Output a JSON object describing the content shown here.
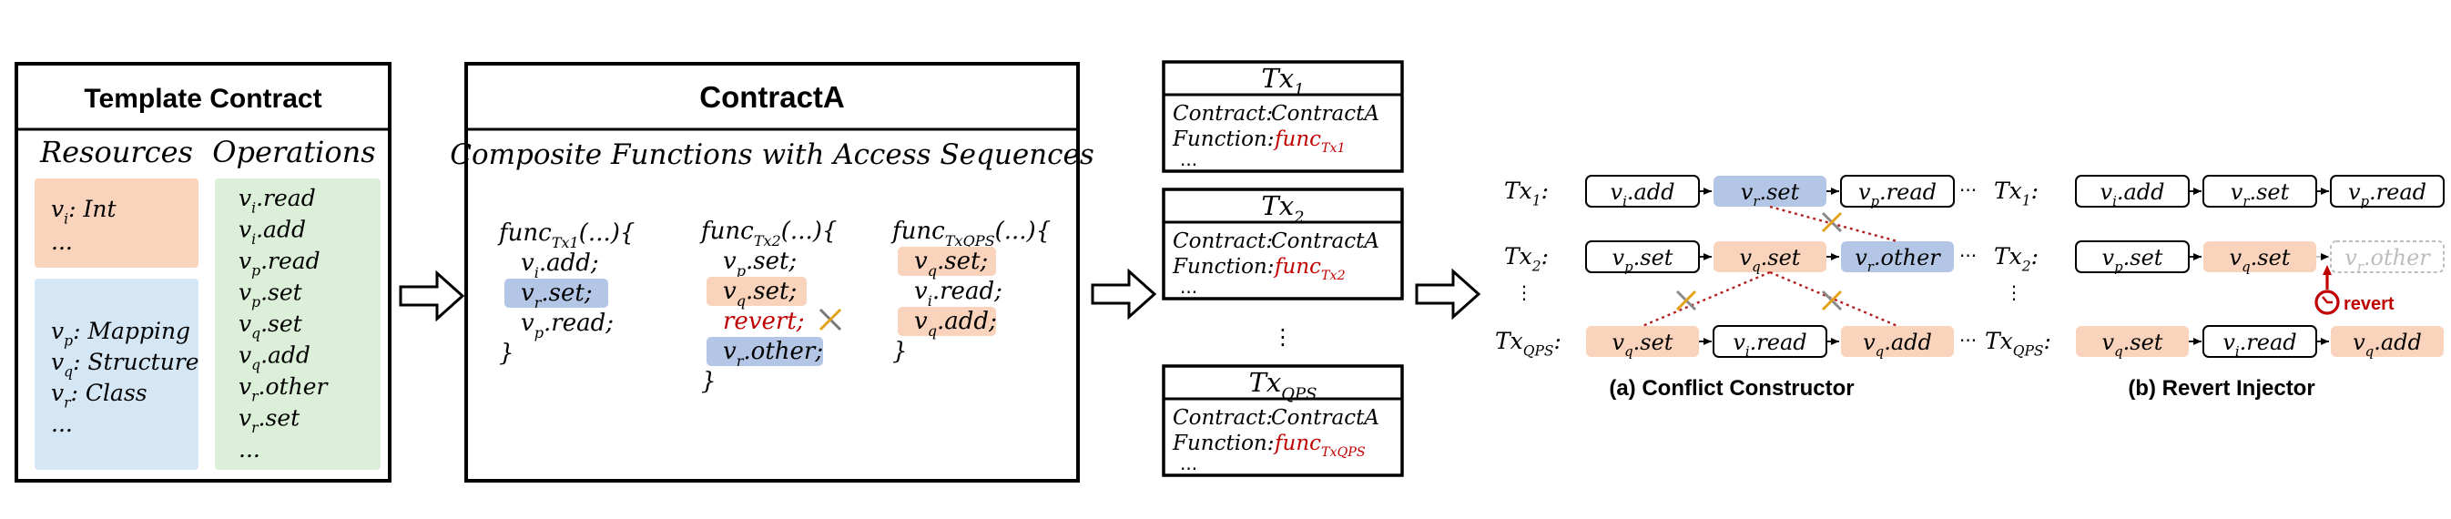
{
  "colors": {
    "orange": "#f9d3bb",
    "blue": "#b4c6e6",
    "green": "#dcefd8",
    "red": "#c00000",
    "dark": "#000000",
    "gray": "#bdbdbd",
    "dotted_red": "#b22222"
  },
  "template_contract": {
    "title": "Template Contract",
    "resources_header": "Resources",
    "operations_header": "Operations",
    "resource_group_1": [
      "v_i: Int",
      "..."
    ],
    "resource_group_2": [
      "v_p: Mapping",
      "v_q: Structure",
      "v_r: Class",
      "..."
    ],
    "operations": [
      "v_i.read",
      "v_i.add",
      "v_p.read",
      "v_p.set",
      "v_q.set",
      "v_q.add",
      "v_r.other",
      "v_r.set",
      "..."
    ]
  },
  "contract_a": {
    "title": "ContractA",
    "subtitle": "Composite Functions with Access Sequences",
    "func1": {
      "name": "func_Tx1(...){",
      "lines": [
        "v_i.add;",
        "v_r.set;",
        "v_p.read;"
      ],
      "close": "}"
    },
    "func2": {
      "name": "func_Tx2(...){",
      "lines": [
        "v_p.set;",
        "v_q.set;",
        "revert;",
        "v_r.other;"
      ],
      "close": "}"
    },
    "func3": {
      "name": "func_TxQPS(...){",
      "lines": [
        "v_q.set;",
        "v_i.read;",
        "v_q.add;"
      ],
      "close": "}"
    }
  },
  "transactions": [
    {
      "title": "Tx_1",
      "contract_label": "Contract:",
      "contract": "ContractA",
      "function_label": "Function:",
      "function": "func_Tx1",
      "more": "..."
    },
    {
      "title": "Tx_2",
      "contract_label": "Contract:",
      "contract": "ContractA",
      "function_label": "Function:",
      "function": "func_Tx2",
      "more": "..."
    },
    {
      "title": "Tx_QPS",
      "contract_label": "Contract:",
      "contract": "ContractA",
      "function_label": "Function:",
      "function": "func_TxQPS",
      "more": "..."
    }
  ],
  "tx_vdots": "⋮",
  "conflict_constructor": {
    "caption": "(a) Conflict Constructor",
    "rows": [
      {
        "label": "Tx_1:",
        "ops": [
          "v_i.add",
          "v_r.set",
          "v_p.read"
        ]
      },
      {
        "label": "Tx_2:",
        "ops": [
          "v_p.set",
          "v_q.set",
          "v_r.other"
        ]
      },
      {
        "label": "Tx_QPS:",
        "ops": [
          "v_q.set",
          "v_i.read",
          "v_q.add"
        ]
      }
    ],
    "ellipsis": "···",
    "vdots": "⋮"
  },
  "revert_injector": {
    "caption": "(b) Revert Injector",
    "rows": [
      {
        "label": "Tx_1:",
        "ops": [
          "v_i.add",
          "v_r.set",
          "v_p.read"
        ]
      },
      {
        "label": "Tx_2:",
        "ops": [
          "v_p.set",
          "v_q.set",
          "v_r.other"
        ]
      },
      {
        "label": "Tx_QPS:",
        "ops": [
          "v_q.set",
          "v_i.read",
          "v_q.add"
        ]
      }
    ],
    "revert_label": "revert",
    "ellipsis": "···",
    "vdots": "⋮"
  }
}
